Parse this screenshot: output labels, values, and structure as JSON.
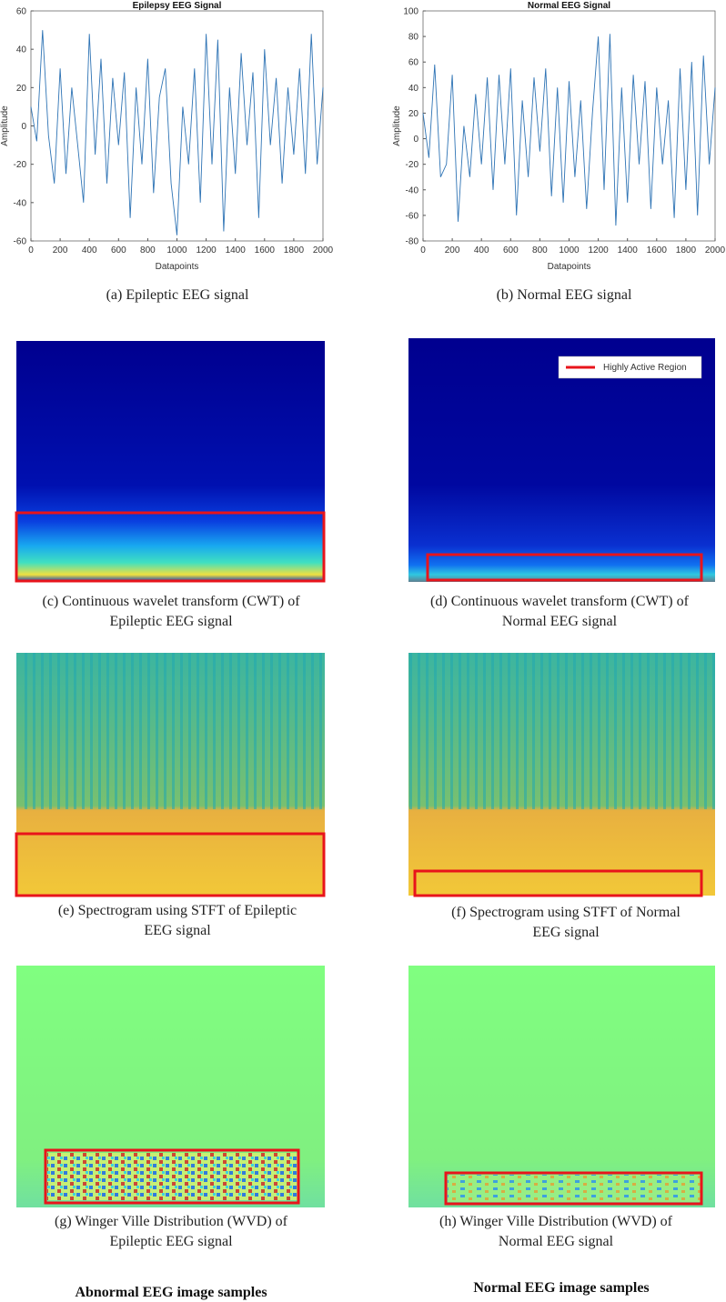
{
  "chart_data": [
    {
      "type": "line",
      "title": "Epilepsy EEG Signal",
      "xlabel": "Datapoints",
      "ylabel": "Amplitude",
      "x": [
        0,
        40,
        80,
        120,
        160,
        200,
        240,
        280,
        320,
        360,
        400,
        440,
        480,
        520,
        560,
        600,
        640,
        680,
        720,
        760,
        800,
        840,
        880,
        920,
        960,
        1000,
        1040,
        1080,
        1120,
        1160,
        1200,
        1240,
        1280,
        1320,
        1360,
        1400,
        1440,
        1480,
        1520,
        1560,
        1600,
        1640,
        1680,
        1720,
        1760,
        1800,
        1840,
        1880,
        1920,
        1960,
        2000
      ],
      "values": [
        10,
        -8,
        50,
        -5,
        -30,
        30,
        -25,
        20,
        -10,
        -40,
        48,
        -15,
        35,
        -30,
        25,
        -10,
        28,
        -48,
        20,
        -20,
        35,
        -35,
        15,
        30,
        -30,
        -57,
        10,
        -20,
        30,
        -40,
        48,
        -20,
        45,
        -55,
        20,
        -25,
        38,
        -10,
        28,
        -48,
        40,
        -10,
        25,
        -30,
        20,
        -15,
        30,
        -25,
        48,
        -20,
        20
      ],
      "color": "#2f74b5",
      "xlim": [
        0,
        2000
      ],
      "xticks": [
        0,
        200,
        400,
        600,
        800,
        1000,
        1200,
        1400,
        1600,
        1800,
        2000
      ],
      "ylim": [
        -60,
        60
      ],
      "yticks": [
        -60,
        -40,
        -20,
        0,
        20,
        40,
        60
      ]
    },
    {
      "type": "line",
      "title": "Normal EEG Signal",
      "xlabel": "Datapoints",
      "ylabel": "Amplitude",
      "x": [
        0,
        40,
        80,
        120,
        160,
        200,
        240,
        280,
        320,
        360,
        400,
        440,
        480,
        520,
        560,
        600,
        640,
        680,
        720,
        760,
        800,
        840,
        880,
        920,
        960,
        1000,
        1040,
        1080,
        1120,
        1160,
        1200,
        1240,
        1280,
        1320,
        1360,
        1400,
        1440,
        1480,
        1520,
        1560,
        1600,
        1640,
        1680,
        1720,
        1760,
        1800,
        1840,
        1880,
        1920,
        1960,
        2000
      ],
      "values": [
        20,
        -15,
        58,
        -30,
        -20,
        50,
        -65,
        10,
        -30,
        35,
        -20,
        48,
        -40,
        50,
        -20,
        55,
        -60,
        30,
        -30,
        48,
        -10,
        55,
        -45,
        40,
        -50,
        45,
        -30,
        30,
        -55,
        20,
        80,
        -40,
        82,
        -68,
        40,
        -50,
        50,
        -20,
        45,
        -55,
        40,
        -20,
        30,
        -62,
        55,
        -40,
        60,
        -60,
        65,
        -20,
        40
      ],
      "color": "#2f74b5",
      "xlim": [
        0,
        2000
      ],
      "xticks": [
        0,
        200,
        400,
        600,
        800,
        1000,
        1200,
        1400,
        1600,
        1800,
        2000
      ],
      "ylim": [
        -80,
        100
      ],
      "yticks": [
        -80,
        -60,
        -40,
        -20,
        0,
        20,
        40,
        60,
        80,
        100
      ]
    }
  ],
  "captions": [
    [
      "(a) Epileptic EEG signal"
    ],
    [
      "(b) Normal EEG signal"
    ],
    [
      "(c) Continuous wavelet transform (CWT) of",
      "Epileptic EEG signal"
    ],
    [
      "(d) Continuous wavelet transform (CWT) of",
      "Normal EEG signal"
    ],
    [
      "(e) Spectrogram using STFT of Epileptic",
      "EEG signal"
    ],
    [
      "(f) Spectrogram using STFT of Normal",
      "EEG signal"
    ],
    [
      "(g) Winger Ville Distribution (WVD) of",
      "Epileptic EEG signal"
    ],
    [
      "(h) Winger Ville Distribution (WVD) of",
      "Normal EEG signal"
    ]
  ],
  "legend": "Highly Active Region",
  "column_titles": [
    "Abnormal EEG image samples",
    "Normal EEG image samples"
  ]
}
